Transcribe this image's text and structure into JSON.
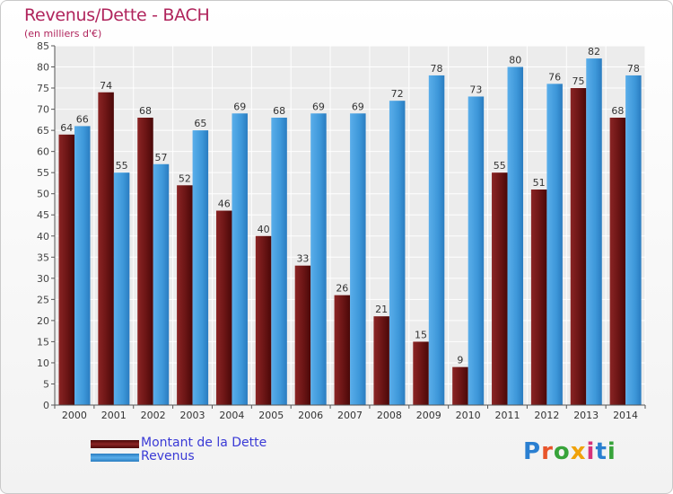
{
  "title": "Revenus/Dette - BACH",
  "subtitle": "(en milliers d'€)",
  "legend": [
    {
      "label": "Montant de la Dette",
      "color": "#7a1c1c"
    },
    {
      "label": "Revenus",
      "color": "#3d97d9"
    }
  ],
  "logo": {
    "text": "Proxiti",
    "colors": [
      "#2a7fd1",
      "#e8542a",
      "#37a33a",
      "#f0a20a",
      "#d6327a",
      "#2a7fd1",
      "#37a33a"
    ]
  },
  "chart_data": {
    "type": "bar",
    "categories": [
      "2000",
      "2001",
      "2002",
      "2003",
      "2004",
      "2005",
      "2006",
      "2007",
      "2008",
      "2009",
      "2010",
      "2011",
      "2012",
      "2013",
      "2014"
    ],
    "series": [
      {
        "name": "Montant de la Dette",
        "color": "#7a1c1c",
        "values": [
          64,
          74,
          68,
          52,
          46,
          40,
          33,
          26,
          21,
          15,
          9,
          55,
          51,
          75,
          68
        ]
      },
      {
        "name": "Revenus",
        "color": "#3d97d9",
        "values": [
          66,
          55,
          57,
          65,
          69,
          68,
          69,
          69,
          72,
          78,
          73,
          80,
          76,
          82,
          78
        ]
      }
    ],
    "ylim": [
      0,
      85
    ],
    "yticks": [
      0,
      5,
      10,
      15,
      20,
      25,
      30,
      35,
      40,
      45,
      50,
      55,
      60,
      65,
      70,
      75,
      80,
      85
    ],
    "grid": true,
    "legend_position": "bottom-left"
  }
}
